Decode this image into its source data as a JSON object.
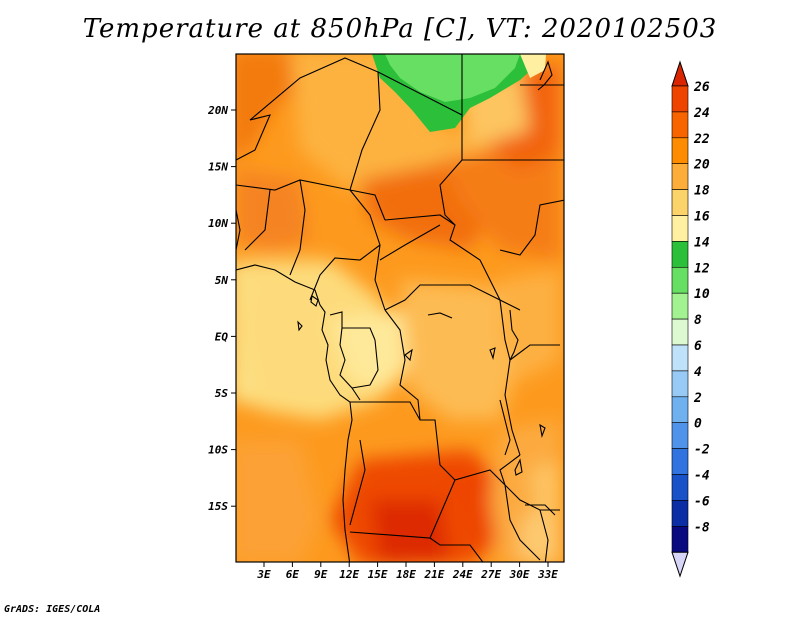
{
  "title": "Temperature at 850hPa [C], VT: 2020102503",
  "credit": "GrADS: IGES/COLA",
  "map": {
    "lat_labels": [
      "20N",
      "15N",
      "10N",
      "5N",
      "EQ",
      "5S",
      "10S",
      "15S"
    ],
    "lon_labels": [
      "3E",
      "6E",
      "9E",
      "12E",
      "15E",
      "18E",
      "21E",
      "24E",
      "27E",
      "30E",
      "33E"
    ]
  },
  "colorbar": {
    "labels": [
      "26",
      "24",
      "22",
      "20",
      "18",
      "16",
      "14",
      "12",
      "10",
      "8",
      "6",
      "4",
      "2",
      "0",
      "-2",
      "-4",
      "-6",
      "-8"
    ],
    "colors": [
      "#d92600",
      "#ee4400",
      "#f86400",
      "#fd8c00",
      "#fdae3a",
      "#fcd36a",
      "#fef0a0",
      "#2bbf3a",
      "#67df62",
      "#a3f291",
      "#dcf9d2",
      "#bfe2fa",
      "#97cbf6",
      "#6fb0ef",
      "#4f94ea",
      "#3174e0",
      "#1851c8",
      "#0b2ea4",
      "#090a80",
      "#d7d5f7"
    ]
  }
}
